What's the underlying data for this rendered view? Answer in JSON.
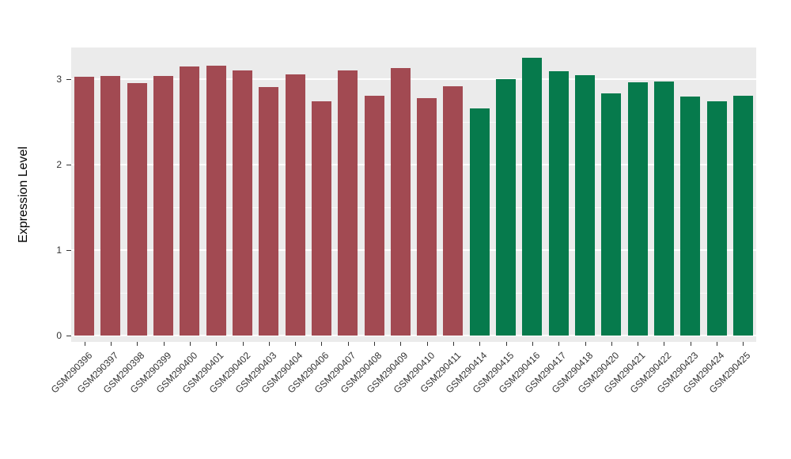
{
  "chart_data": {
    "type": "bar",
    "title": "",
    "xlabel": "",
    "ylabel": "Expression Level",
    "ylim": [
      0,
      3.3
    ],
    "yticks": [
      0,
      1,
      2,
      3
    ],
    "yminorticks": [
      0.5,
      1.5,
      2.5
    ],
    "grid": "on",
    "legend": "none",
    "panel_background": "#EBEBEB",
    "grid_color": "#FFFFFF",
    "axis_text_color": "#333333",
    "categories": [
      "GSM290396",
      "GSM290397",
      "GSM290398",
      "GSM290399",
      "GSM290400",
      "GSM290401",
      "GSM290402",
      "GSM290403",
      "GSM290404",
      "GSM290406",
      "GSM290407",
      "GSM290408",
      "GSM290409",
      "GSM290410",
      "GSM290411",
      "GSM290414",
      "GSM290415",
      "GSM290416",
      "GSM290417",
      "GSM290418",
      "GSM290420",
      "GSM290421",
      "GSM290422",
      "GSM290423",
      "GSM290424",
      "GSM290425"
    ],
    "values": [
      3.03,
      3.04,
      2.95,
      3.04,
      3.15,
      3.16,
      3.1,
      2.91,
      3.06,
      2.74,
      3.1,
      2.81,
      3.13,
      2.78,
      2.92,
      2.66,
      3.0,
      3.25,
      3.09,
      3.05,
      2.83,
      2.96,
      2.97,
      2.8,
      2.74,
      2.81
    ],
    "bar_groups": [
      "group1",
      "group1",
      "group1",
      "group1",
      "group1",
      "group1",
      "group1",
      "group1",
      "group1",
      "group1",
      "group1",
      "group1",
      "group1",
      "group1",
      "group1",
      "group2",
      "group2",
      "group2",
      "group2",
      "group2",
      "group2",
      "group2",
      "group2",
      "group2",
      "group2",
      "group2"
    ],
    "group_colors": {
      "group1": "#A24A52",
      "group2": "#067A4C"
    }
  }
}
